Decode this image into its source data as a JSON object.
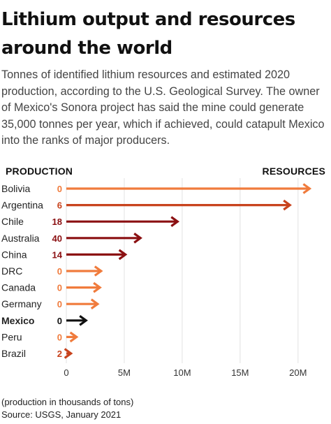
{
  "title": "Lithium output and resources around the world",
  "subtitle": "Tonnes of identified lithium resources and estimated 2020 production, according to the U.S. Geological Survey. The owner of Mexico's Sonora project has said the mine could generate 35,000 tonnes per year, which if achieved, could catapult Mexico into the ranks of major producers.",
  "headers": {
    "production": "PRODUCTION",
    "resources": "RESOURCES"
  },
  "footnote": "(production in thousands of tons)",
  "source": "Source: USGS, January 2021",
  "chart_data": {
    "type": "bar",
    "categories": [
      "Bolivia",
      "Argentina",
      "Chile",
      "Australia",
      "China",
      "DRC",
      "Canada",
      "Germany",
      "Mexico",
      "Peru",
      "Brazil"
    ],
    "series": [
      {
        "name": "RESOURCES",
        "values": [
          21000000,
          19300000,
          9600000,
          6400000,
          5100000,
          3000000,
          2900000,
          2700000,
          1700000,
          880000,
          400000
        ]
      },
      {
        "name": "PRODUCTION",
        "values": [
          0,
          6,
          18,
          40,
          14,
          0,
          0,
          0,
          0,
          0,
          2
        ]
      }
    ],
    "highlight": "Mexico",
    "xlim": [
      0,
      22000000
    ],
    "xticks": [
      0,
      5000000,
      10000000,
      15000000,
      20000000
    ],
    "xtick_labels": [
      "0",
      "5M",
      "10M",
      "15M",
      "20M"
    ],
    "colors": {
      "orange": "#f07b3c",
      "rust": "#c8431d",
      "darkred": "#8b1012",
      "black": "#111111"
    },
    "bar_colors": [
      "orange",
      "rust",
      "darkred",
      "darkred",
      "darkred",
      "orange",
      "orange",
      "orange",
      "black",
      "orange",
      "rust"
    ]
  }
}
